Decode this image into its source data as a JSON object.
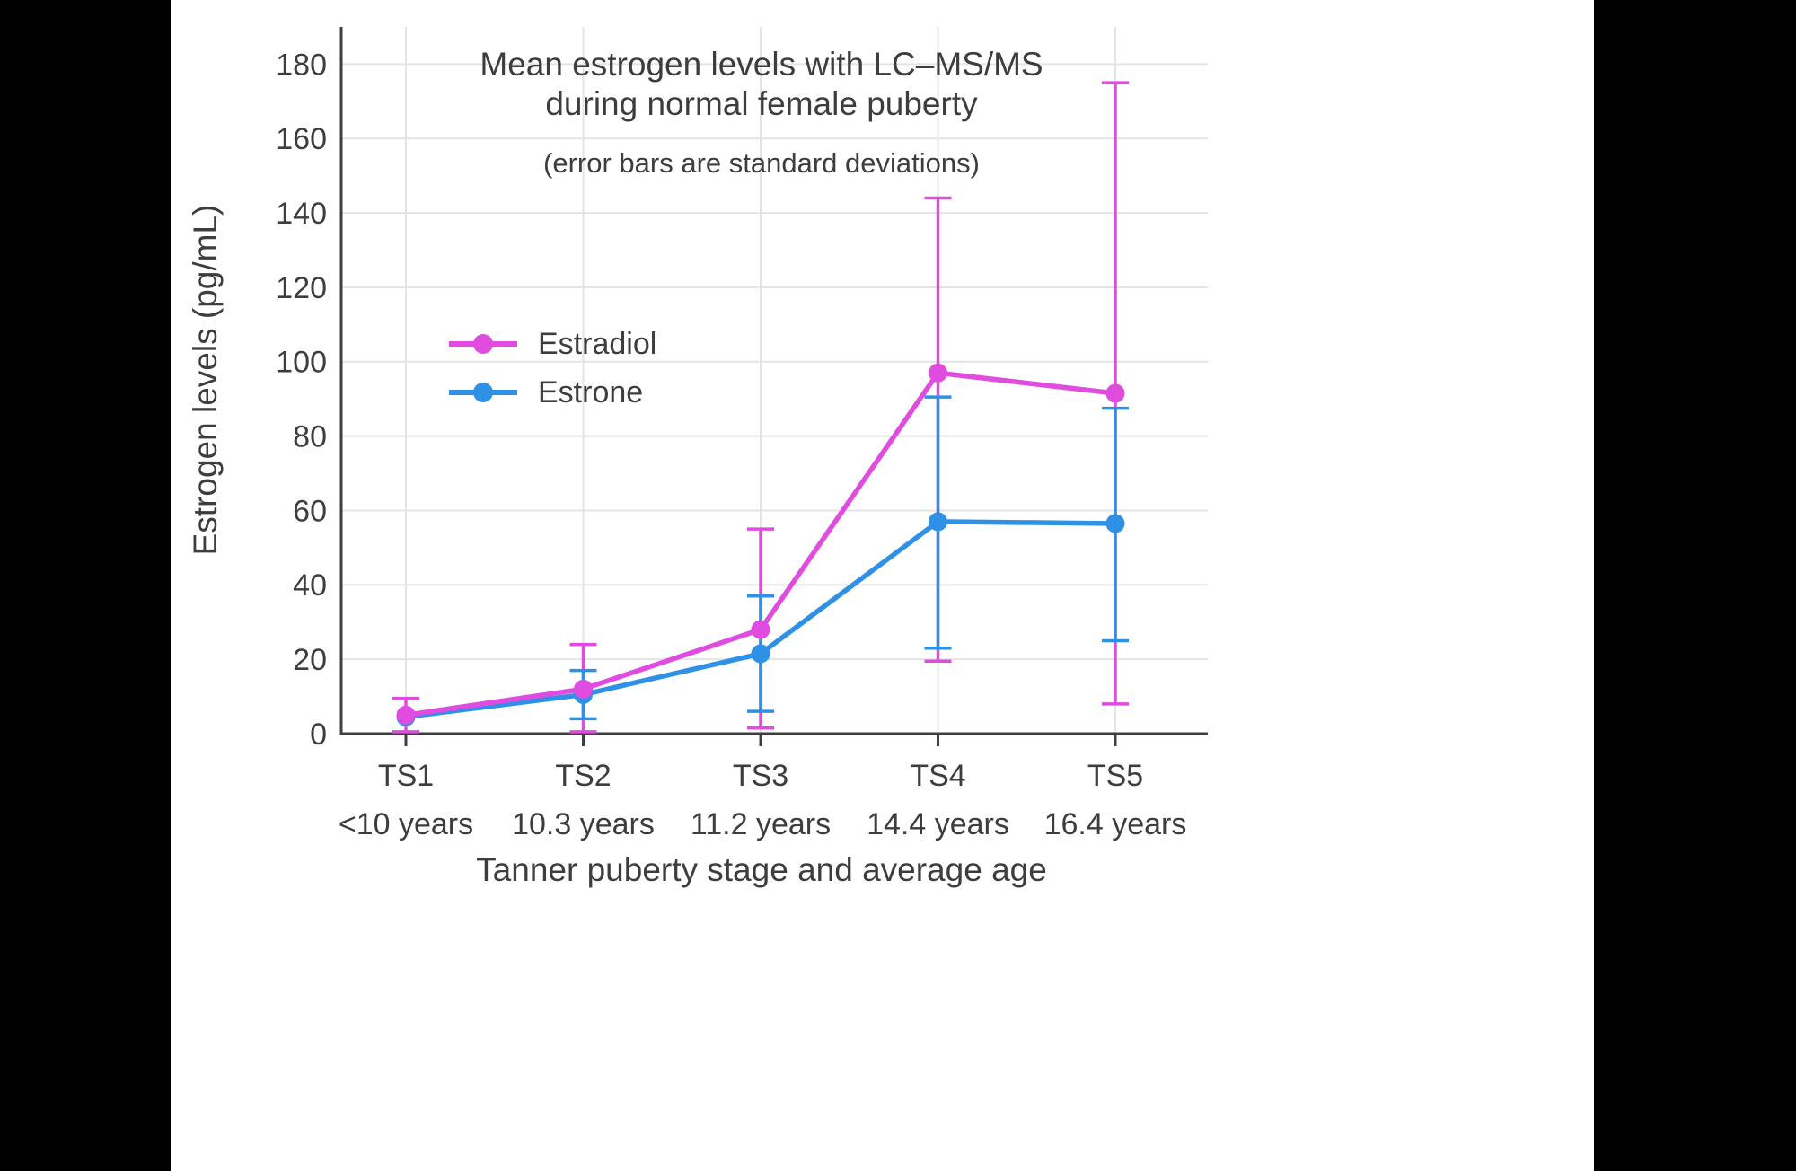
{
  "page": {
    "background": "#000000",
    "canvas_background": "#ffffff",
    "text_color": "#3d3d3d",
    "grid_color": "#e4e4e4",
    "axis_color": "#3f3f3f"
  },
  "chart_data": {
    "type": "line",
    "title": "Mean estrogen levels with LC–MS/MS during normal female puberty",
    "subtitle": "(error bars are standard deviations)",
    "xlabel": "Tanner puberty stage and average age",
    "ylabel": "Estrogen levels (pg/mL)",
    "ylim": [
      0,
      190
    ],
    "yticks": [
      0,
      20,
      40,
      60,
      80,
      100,
      120,
      140,
      160,
      180
    ],
    "grid": true,
    "legend_position": "inside upper-left of plot",
    "categories": [
      "TS1",
      "TS2",
      "TS3",
      "TS4",
      "TS5"
    ],
    "category_sublabels": [
      "<10 years",
      "10.3 years",
      "11.2 years",
      "14.4 years",
      "16.4 years"
    ],
    "series": [
      {
        "name": "Estradiol",
        "color": "#e04ce0",
        "values": [
          5,
          12,
          28,
          97,
          91.5
        ],
        "error_bar_bottom": [
          0.5,
          0.5,
          1.5,
          19.5,
          8
        ],
        "error_bar_top": [
          9.5,
          24,
          55,
          144,
          175
        ]
      },
      {
        "name": "Estrone",
        "color": "#2e91e5",
        "values": [
          4.5,
          10.5,
          21.5,
          57,
          56.5
        ],
        "error_bar_bottom": [
          null,
          4,
          6,
          23,
          25
        ],
        "error_bar_top": [
          null,
          17,
          37,
          90.5,
          87.5
        ]
      }
    ]
  }
}
